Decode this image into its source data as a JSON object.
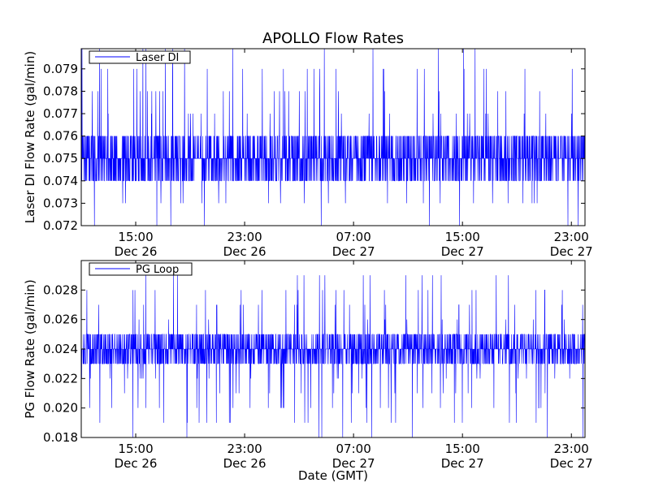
{
  "figure": {
    "title": "APOLLO Flow Rates",
    "xlabel": "Date (GMT)"
  },
  "colors": {
    "series": "#0000ff",
    "axes": "#000000",
    "background": "#ffffff"
  },
  "chart_data": [
    {
      "type": "line",
      "title": "APOLLO Flow Rates",
      "xlabel": "",
      "ylabel": "Laser DI Flow Rate (gal/min)",
      "xlim": [
        "2010-12-26T11:00",
        "2010-12-28T00:00"
      ],
      "ylim": [
        0.072,
        0.0799
      ],
      "yticks": [
        "0.072",
        "0.073",
        "0.074",
        "0.075",
        "0.076",
        "0.077",
        "0.078",
        "0.079"
      ],
      "xticks": [
        {
          "time": "15:00",
          "date": "Dec 26"
        },
        {
          "time": "23:00",
          "date": "Dec 26"
        },
        {
          "time": "07:00",
          "date": "Dec 27"
        },
        {
          "time": "15:00",
          "date": "Dec 27"
        },
        {
          "time": "23:00",
          "date": "Dec 27"
        }
      ],
      "legend": {
        "label": "Laser DI",
        "placement": "top-left"
      },
      "grid": false,
      "series": [
        {
          "name": "Laser DI",
          "value_range": [
            0.072,
            0.08
          ],
          "typical_band": [
            0.074,
            0.076
          ],
          "approx_mean": 0.0755,
          "sampling": "dense (~1-minute readings), quantized to 0.001 gal/min"
        }
      ]
    },
    {
      "type": "line",
      "title": "",
      "xlabel": "Date (GMT)",
      "ylabel": "PG Flow Rate (gal/min)",
      "xlim": [
        "2010-12-26T11:00",
        "2010-12-28T00:00"
      ],
      "ylim": [
        0.018,
        0.03
      ],
      "yticks": [
        "0.018",
        "0.020",
        "0.022",
        "0.024",
        "0.026",
        "0.028"
      ],
      "xticks": [
        {
          "time": "15:00",
          "date": "Dec 26"
        },
        {
          "time": "23:00",
          "date": "Dec 26"
        },
        {
          "time": "07:00",
          "date": "Dec 27"
        },
        {
          "time": "15:00",
          "date": "Dec 27"
        },
        {
          "time": "23:00",
          "date": "Dec 27"
        }
      ],
      "legend": {
        "label": "PG Loop",
        "placement": "top-left"
      },
      "grid": false,
      "series": [
        {
          "name": "PG Loop",
          "value_range": [
            0.018,
            0.029
          ],
          "typical_band": [
            0.023,
            0.025
          ],
          "approx_mean": 0.024,
          "sampling": "dense (~1-minute readings), quantized to 0.001 gal/min"
        }
      ]
    }
  ]
}
